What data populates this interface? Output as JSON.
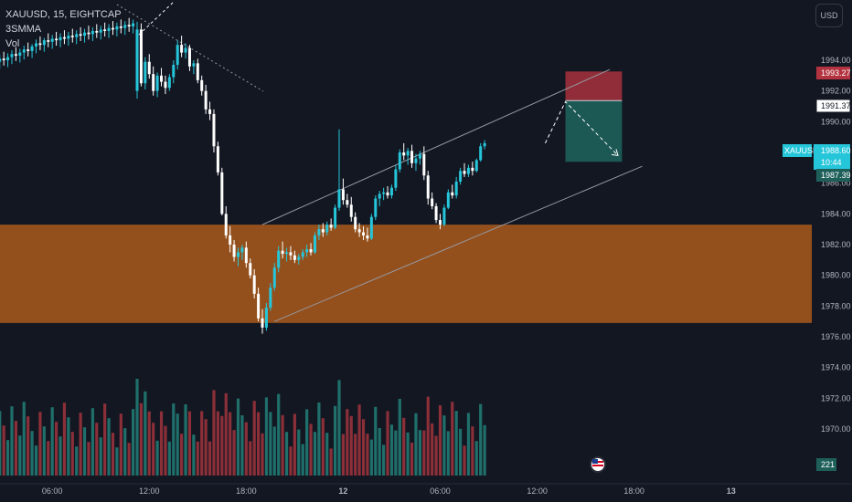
{
  "legend": {
    "symbol_line": "XAUUSD, 15, EIGHTCAP",
    "indicator": "3SMMA",
    "volume": "Vol"
  },
  "currency_button": "USD",
  "colors": {
    "background": "#131722",
    "bull": "#26c6da",
    "bear": "#ffffff",
    "vol_bull": "#1f6f6a",
    "vol_bear": "#8b2f38",
    "zone": "#a0561c",
    "stop": "#b2333f",
    "target": "#1e5f5a",
    "channel": "#9598a1"
  },
  "chart_data": {
    "type": "candlestick",
    "symbol": "XAUUSD",
    "timeframe": "15",
    "y_axis": {
      "ticks": [
        "1994.00",
        "1992.00",
        "1990.00",
        "1988.00",
        "1986.00",
        "1984.00",
        "1982.00",
        "1980.00",
        "1978.00",
        "1976.00",
        "1974.00",
        "1972.00",
        "1970.00"
      ],
      "range": [
        1968.9,
        1995.4
      ]
    },
    "x_axis": {
      "ticks": [
        {
          "label": "06:00",
          "bar": 17
        },
        {
          "label": "12:00",
          "bar": 41
        },
        {
          "label": "18:00",
          "bar": 65
        },
        {
          "label": "12",
          "bar": 89
        },
        {
          "label": "06:00",
          "bar": 113
        },
        {
          "label": "12:00",
          "bar": 137
        },
        {
          "label": "18:00",
          "bar": 161
        },
        {
          "label": "13",
          "bar": 185
        }
      ]
    },
    "price_tags": [
      {
        "value": "1993.27",
        "kind": "stop"
      },
      {
        "value": "1991.37",
        "kind": "entry"
      },
      {
        "value": "1988.60",
        "kind": "current",
        "symbol": "XAUUSD",
        "countdown": "10:44"
      },
      {
        "value": "1987.39",
        "kind": "target"
      }
    ],
    "volume_tag": "221",
    "demand_zone": {
      "from": 1976.9,
      "to": 1983.3
    },
    "position": {
      "stop": 1993.27,
      "entry": 1991.37,
      "target": 1987.39,
      "bar_start": 144,
      "bar_end": 158
    },
    "channel": {
      "upper": [
        [
          69,
          1983.3
        ],
        [
          155,
          1993.4
        ]
      ],
      "lower": [
        [
          72,
          1977.0
        ],
        [
          163,
          1987.1
        ]
      ]
    },
    "projection": [
      [
        139,
        1988.6
      ],
      [
        144,
        1991.3
      ],
      [
        157,
        1987.8
      ]
    ],
    "old_trendline": [
      [
        33,
        1995.5
      ],
      [
        63,
        1991.5
      ]
    ],
    "candles_ohlc_sample": [
      [
        1992.5,
        1993.9,
        1992.2,
        1993.6
      ],
      [
        1993.6,
        1995.4,
        1993.2,
        1994.4
      ]
    ],
    "candles": [
      [
        1993.3,
        1993.75,
        1992.85,
        1993.3
      ],
      [
        1993.3,
        1993.75,
        1992.85,
        1993.5
      ],
      [
        1993.5,
        1993.95,
        1993.05,
        1993.8
      ],
      [
        1993.8,
        1994.25,
        1993.35,
        1993.9
      ],
      [
        1993.9,
        1994.35,
        1993.45,
        1994.1
      ],
      [
        1994.1,
        1994.55,
        1993.65,
        1994.0
      ],
      [
        1994.0,
        1994.45,
        1993.55,
        1994.2
      ],
      [
        1994.2,
        1994.65,
        1993.75,
        1994.4
      ],
      [
        1994.4,
        1994.85,
        1993.95,
        1994.3
      ],
      [
        1994.3,
        1994.75,
        1993.85,
        1994.5
      ],
      [
        1994.5,
        1994.95,
        1994.05,
        1994.7
      ],
      [
        1994.7,
        1995.15,
        1994.25,
        1994.6
      ],
      [
        1994.6,
        1995.05,
        1994.15,
        1994.9
      ],
      [
        1994.9,
        1995.35,
        1994.45,
        1995.1
      ],
      [
        1995.1,
        1995.55,
        1994.65,
        1995.0
      ],
      [
        1995.0,
        1995.45,
        1994.55,
        1995.3
      ],
      [
        1995.3,
        1995.75,
        1994.85,
        1995.2
      ],
      [
        1995.2,
        1995.65,
        1994.75,
        1995.4
      ],
      [
        1995.4,
        1995.85,
        1994.95,
        1995.3
      ],
      [
        1995.3,
        1995.75,
        1994.85,
        1995.5
      ],
      [
        1995.5,
        1995.95,
        1995.05,
        1995.4
      ],
      [
        1995.4,
        1995.85,
        1994.95,
        1995.6
      ],
      [
        1995.6,
        1996.05,
        1995.15,
        1995.5
      ],
      [
        1995.5,
        1995.95,
        1995.05,
        1995.7
      ],
      [
        1995.7,
        1996.15,
        1995.25,
        1995.6
      ],
      [
        1995.6,
        1996.05,
        1995.15,
        1995.8
      ],
      [
        1995.8,
        1996.25,
        1995.35,
        1995.7
      ],
      [
        1995.7,
        1996.15,
        1995.25,
        1995.9
      ],
      [
        1995.9,
        1996.35,
        1995.45,
        1995.8
      ],
      [
        1995.8,
        1996.25,
        1995.35,
        1996.0
      ],
      [
        1996.0,
        1996.45,
        1995.55,
        1995.9
      ],
      [
        1995.9,
        1996.35,
        1995.45,
        1996.1
      ],
      [
        1996.1,
        1996.55,
        1995.65,
        1996.0
      ],
      [
        1996.0,
        1996.45,
        1995.55,
        1996.2
      ],
      [
        1996.2,
        1996.65,
        1995.75,
        1996.1
      ],
      [
        1996.1,
        1996.55,
        1995.65,
        1996.3
      ],
      [
        1996.3,
        1996.75,
        1995.85,
        1996.2
      ],
      [
        1996.2,
        1996.65,
        1995.75,
        1996.4
      ],
      [
        1992.0,
        1996.5,
        1991.5,
        1996.0
      ],
      [
        1996.0,
        1996.4,
        1992.3,
        1992.5
      ],
      [
        1992.5,
        1994.2,
        1992.1,
        1993.9
      ],
      [
        1993.9,
        1994.4,
        1992.8,
        1993.1
      ],
      [
        1993.1,
        1993.6,
        1991.7,
        1992.0
      ],
      [
        1992.0,
        1993.2,
        1991.6,
        1993.0
      ],
      [
        1993.0,
        1993.5,
        1992.3,
        1992.6
      ],
      [
        1992.6,
        1993.0,
        1991.8,
        1992.2
      ],
      [
        1992.2,
        1993.1,
        1992.0,
        1992.9
      ],
      [
        1992.9,
        1994.0,
        1992.5,
        1993.7
      ],
      [
        1993.7,
        1995.3,
        1993.4,
        1995.0
      ],
      [
        1995.0,
        1995.6,
        1994.2,
        1994.5
      ],
      [
        1994.5,
        1995.1,
        1994.1,
        1994.8
      ],
      [
        1994.8,
        1995.0,
        1993.3,
        1993.6
      ],
      [
        1993.6,
        1994.0,
        1993.1,
        1993.8
      ],
      [
        1993.8,
        1994.1,
        1992.5,
        1992.7
      ],
      [
        1992.7,
        1993.0,
        1991.7,
        1992.0
      ],
      [
        1992.0,
        1992.4,
        1990.5,
        1990.8
      ],
      [
        1990.8,
        1991.3,
        1990.1,
        1990.5
      ],
      [
        1990.5,
        1990.8,
        1988.0,
        1988.4
      ],
      [
        1988.4,
        1988.7,
        1986.5,
        1986.7
      ],
      [
        1986.7,
        1987.0,
        1983.9,
        1984.0
      ],
      [
        1984.0,
        1984.5,
        1982.4,
        1982.6
      ],
      [
        1982.6,
        1983.2,
        1981.5,
        1982.0
      ],
      [
        1982.0,
        1982.3,
        1980.9,
        1981.2
      ],
      [
        1981.2,
        1981.8,
        1980.6,
        1981.5
      ],
      [
        1981.5,
        1982.0,
        1981.0,
        1981.8
      ],
      [
        1981.8,
        1982.2,
        1980.5,
        1980.8
      ],
      [
        1980.8,
        1981.1,
        1979.8,
        1980.0
      ],
      [
        1980.0,
        1980.4,
        1978.5,
        1978.8
      ],
      [
        1978.8,
        1979.2,
        1977.0,
        1977.2
      ],
      [
        1977.2,
        1977.8,
        1976.2,
        1976.6
      ],
      [
        1976.6,
        1978.2,
        1976.4,
        1977.9
      ],
      [
        1977.9,
        1979.5,
        1977.7,
        1979.2
      ],
      [
        1979.2,
        1980.8,
        1979.0,
        1980.5
      ],
      [
        1980.5,
        1981.9,
        1980.2,
        1981.6
      ],
      [
        1981.6,
        1982.2,
        1981.1,
        1981.4
      ],
      [
        1981.4,
        1981.8,
        1980.9,
        1981.5
      ],
      [
        1981.5,
        1981.9,
        1981.0,
        1981.3
      ],
      [
        1981.3,
        1981.6,
        1980.8,
        1981.0
      ],
      [
        1981.0,
        1981.4,
        1980.7,
        1981.2
      ],
      [
        1981.2,
        1981.7,
        1981.0,
        1981.5
      ],
      [
        1981.5,
        1982.0,
        1981.2,
        1981.7
      ],
      [
        1981.7,
        1982.1,
        1981.3,
        1981.5
      ],
      [
        1981.5,
        1982.8,
        1981.4,
        1982.6
      ],
      [
        1982.6,
        1983.3,
        1982.3,
        1983.0
      ],
      [
        1983.0,
        1983.4,
        1982.5,
        1982.8
      ],
      [
        1982.8,
        1983.5,
        1982.6,
        1983.3
      ],
      [
        1983.3,
        1983.7,
        1982.9,
        1983.1
      ],
      [
        1983.1,
        1984.6,
        1983.0,
        1984.4
      ],
      [
        1984.4,
        1989.5,
        1984.2,
        1985.6
      ],
      [
        1985.6,
        1986.3,
        1984.6,
        1984.9
      ],
      [
        1984.9,
        1985.3,
        1984.4,
        1984.6
      ],
      [
        1984.6,
        1985.1,
        1983.5,
        1983.8
      ],
      [
        1983.8,
        1984.1,
        1982.8,
        1983.0
      ],
      [
        1983.0,
        1983.4,
        1982.5,
        1982.8
      ],
      [
        1982.8,
        1983.2,
        1982.3,
        1982.6
      ],
      [
        1982.6,
        1983.1,
        1982.2,
        1982.4
      ],
      [
        1982.4,
        1984.0,
        1982.3,
        1983.8
      ],
      [
        1983.8,
        1985.2,
        1983.6,
        1985.0
      ],
      [
        1985.0,
        1985.5,
        1984.5,
        1985.3
      ],
      [
        1985.3,
        1985.7,
        1984.9,
        1985.4
      ],
      [
        1985.4,
        1985.8,
        1985.0,
        1985.2
      ],
      [
        1985.2,
        1985.9,
        1985.0,
        1985.7
      ],
      [
        1985.7,
        1987.2,
        1985.5,
        1986.9
      ],
      [
        1986.9,
        1988.2,
        1986.7,
        1988.0
      ],
      [
        1988.0,
        1988.6,
        1987.5,
        1987.8
      ],
      [
        1987.8,
        1988.3,
        1987.2,
        1988.1
      ],
      [
        1988.1,
        1988.5,
        1987.0,
        1987.3
      ],
      [
        1987.3,
        1987.9,
        1986.8,
        1987.6
      ],
      [
        1987.6,
        1988.1,
        1987.2,
        1987.9
      ],
      [
        1987.9,
        1988.4,
        1986.2,
        1986.5
      ],
      [
        1986.5,
        1986.8,
        1984.6,
        1985.0
      ],
      [
        1985.0,
        1985.4,
        1984.3,
        1984.5
      ],
      [
        1984.5,
        1984.7,
        1983.4,
        1983.6
      ],
      [
        1983.6,
        1984.0,
        1983.0,
        1983.3
      ],
      [
        1983.3,
        1984.6,
        1983.2,
        1984.4
      ],
      [
        1984.4,
        1985.6,
        1984.3,
        1985.4
      ],
      [
        1985.4,
        1985.9,
        1985.0,
        1985.2
      ],
      [
        1985.2,
        1986.4,
        1985.0,
        1986.1
      ],
      [
        1986.1,
        1987.0,
        1985.9,
        1986.8
      ],
      [
        1986.8,
        1987.3,
        1986.4,
        1986.6
      ],
      [
        1986.6,
        1987.2,
        1986.4,
        1987.0
      ],
      [
        1987.0,
        1987.4,
        1986.5,
        1986.8
      ],
      [
        1986.8,
        1987.6,
        1986.7,
        1987.5
      ],
      [
        1987.5,
        1988.6,
        1987.4,
        1988.4
      ],
      [
        1988.4,
        1988.8,
        1988.2,
        1988.6
      ]
    ]
  }
}
